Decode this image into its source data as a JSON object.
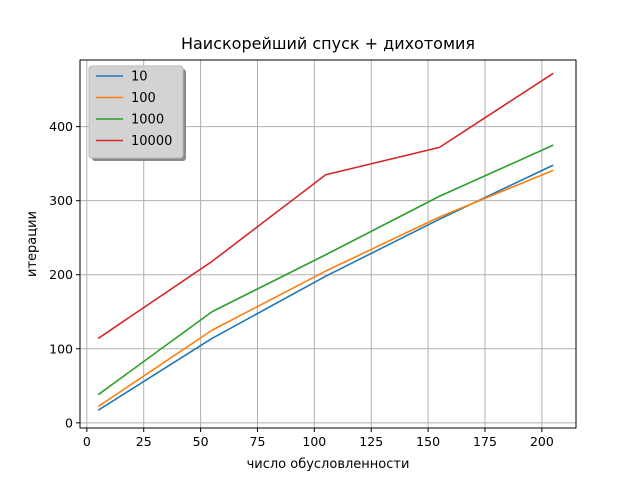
{
  "chart_data": {
    "type": "line",
    "title": "Наискорейший спуск + дихотомия",
    "xlabel": "число обусловленности",
    "ylabel": "итерации",
    "x": [
      5,
      55,
      105,
      155,
      205
    ],
    "xlim": [
      -3,
      215
    ],
    "ylim": [
      -7,
      490
    ],
    "xticks": [
      0,
      25,
      50,
      75,
      100,
      125,
      150,
      175,
      200
    ],
    "yticks": [
      0,
      100,
      200,
      300,
      400
    ],
    "grid": true,
    "legend_position": "top-left",
    "series": [
      {
        "name": "10",
        "color": "#1f77b4",
        "values": [
          17,
          114,
          198,
          275,
          348
        ]
      },
      {
        "name": "100",
        "color": "#ff7f0e",
        "values": [
          22,
          125,
          205,
          278,
          341
        ]
      },
      {
        "name": "1000",
        "color": "#2ca02c",
        "values": [
          38,
          150,
          227,
          306,
          375
        ]
      },
      {
        "name": "10000",
        "color": "#d62728",
        "values": [
          114,
          218,
          335,
          372,
          472
        ]
      }
    ]
  }
}
